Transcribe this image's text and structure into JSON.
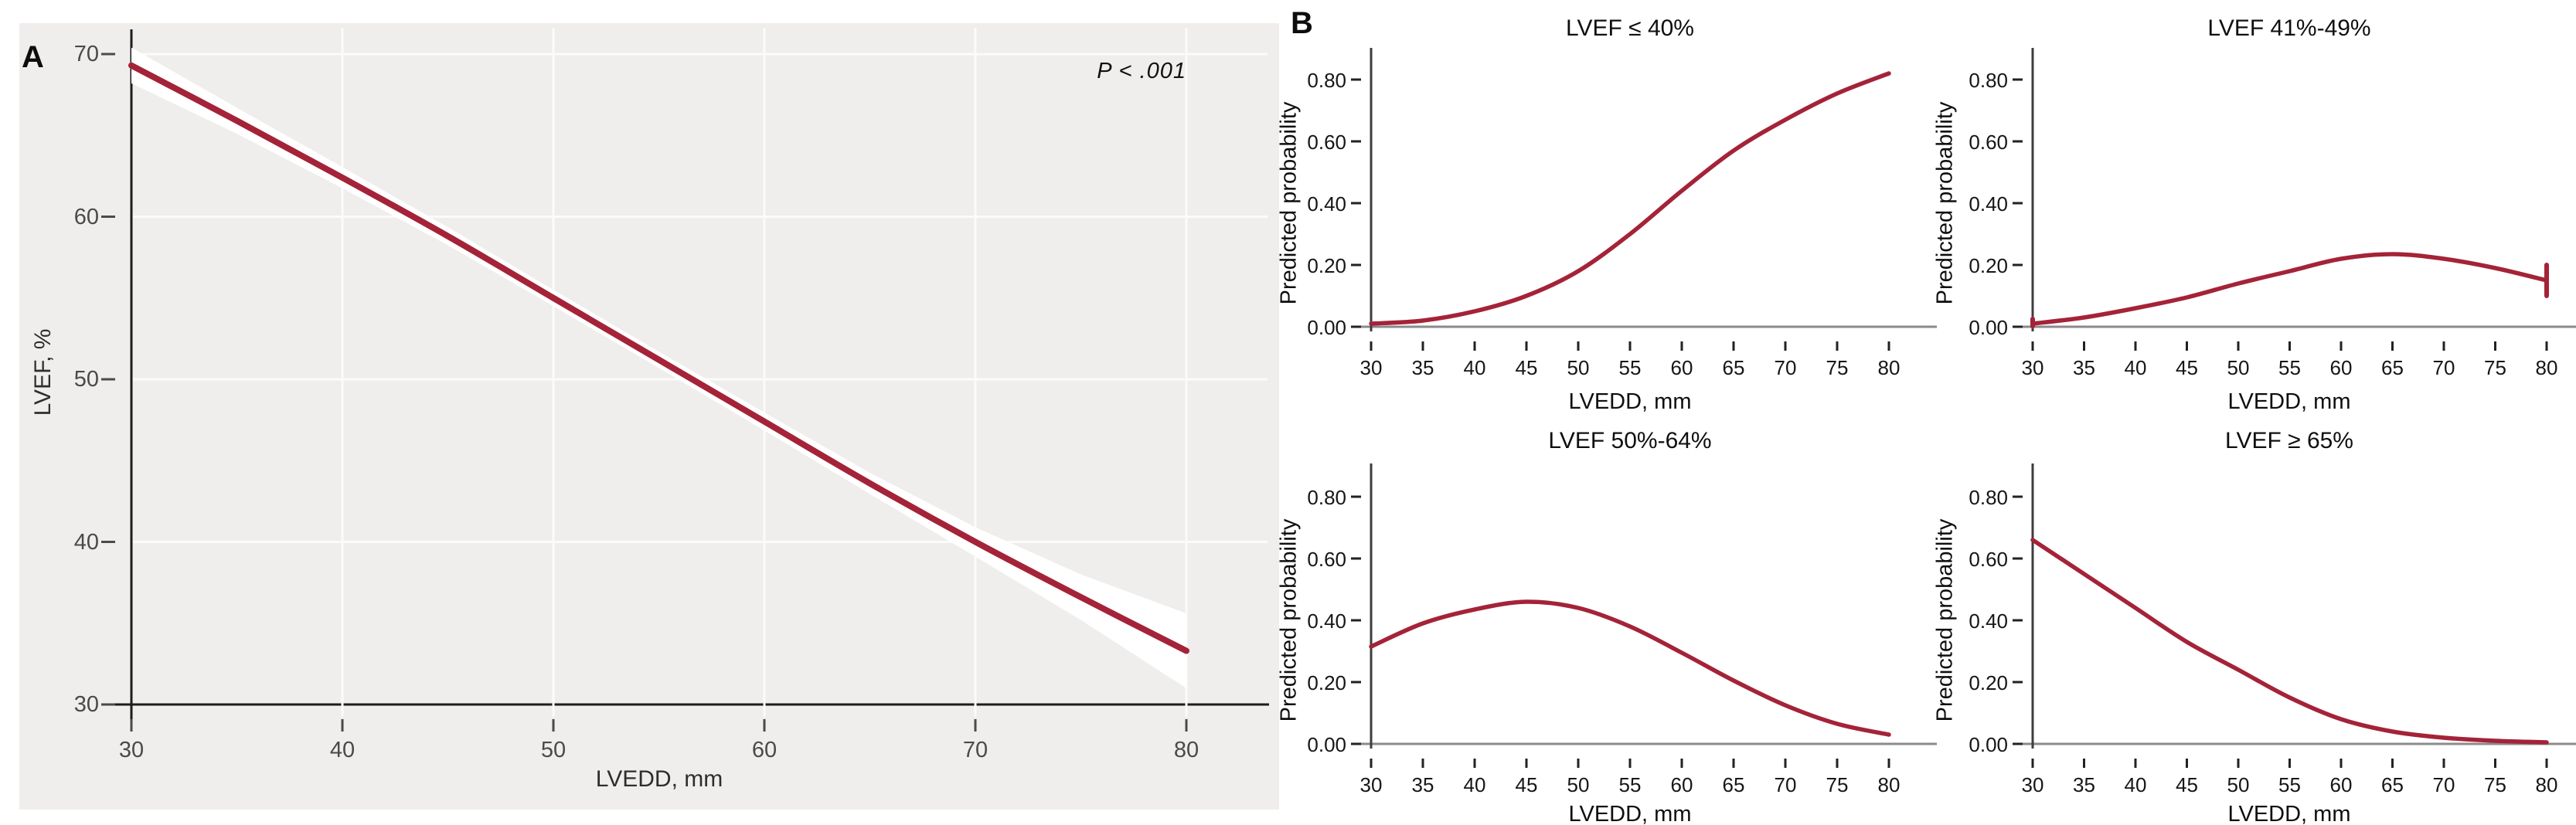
{
  "figure": {
    "panel_a_label": "A",
    "panel_b_label": "B"
  },
  "colors": {
    "curve": "#a42338",
    "panel_a_bg": "#efeeec",
    "gridline": "#fbfbfa",
    "axis_dark": "#1c1c1c",
    "axis_gray": "#8a8a8a",
    "b_axis_dark": "#3d3d3d",
    "tick_mark": "#4a4a4a",
    "ci_band": "#ffffff"
  },
  "chart_data": [
    {
      "panel": "A",
      "type": "line",
      "title": "",
      "xlabel": "LVEDD, mm",
      "ylabel": "LVEF, %",
      "annotation": "P < .001",
      "x": [
        30,
        35,
        40,
        45,
        50,
        55,
        60,
        65,
        70,
        75,
        80
      ],
      "y": [
        69.3,
        65.9,
        62.4,
        58.8,
        55.0,
        51.2,
        47.4,
        43.6,
        40.0,
        36.6,
        33.3
      ],
      "ci_half_width": [
        1.1,
        0.8,
        0.65,
        0.55,
        0.5,
        0.5,
        0.55,
        0.65,
        0.9,
        1.4,
        2.3
      ],
      "xlim": [
        30,
        80
      ],
      "ylim": [
        30,
        70
      ],
      "xticks": {
        "values": [
          30,
          40,
          50,
          60,
          70,
          80
        ],
        "labels": [
          "30",
          "40",
          "50",
          "60",
          "70",
          "80"
        ]
      },
      "yticks": {
        "values": [
          30,
          40,
          50,
          60,
          70
        ],
        "labels": [
          "30",
          "40",
          "50",
          "60",
          "70"
        ]
      },
      "grid": true,
      "legend": "none"
    },
    {
      "panel": "B",
      "type": "line",
      "title": "LVEF ≤ 40%",
      "xlabel": "LVEDD, mm",
      "ylabel": "Predicted probability",
      "x": [
        30,
        35,
        40,
        45,
        50,
        55,
        60,
        65,
        70,
        75,
        80
      ],
      "y": [
        0.01,
        0.02,
        0.05,
        0.1,
        0.18,
        0.3,
        0.44,
        0.57,
        0.67,
        0.755,
        0.82
      ],
      "xlim": [
        30,
        80
      ],
      "ylim": [
        0,
        0.9
      ],
      "xticks": {
        "values": [
          30,
          35,
          40,
          45,
          50,
          55,
          60,
          65,
          70,
          75,
          80
        ],
        "labels": [
          "30",
          "35",
          "40",
          "45",
          "50",
          "55",
          "60",
          "65",
          "70",
          "75",
          "80"
        ]
      },
      "yticks": {
        "values": [
          0.0,
          0.2,
          0.4,
          0.6,
          0.8
        ],
        "labels": [
          "0.00",
          "0.20",
          "0.40",
          "0.60",
          "0.80"
        ]
      },
      "grid": false,
      "legend": "none"
    },
    {
      "panel": "B",
      "type": "line",
      "title": "LVEF 41%-49%",
      "xlabel": "LVEDD, mm",
      "ylabel": "Predicted probability",
      "x": [
        30,
        35,
        40,
        45,
        50,
        55,
        60,
        65,
        70,
        75,
        80
      ],
      "y": [
        0.01,
        0.03,
        0.06,
        0.095,
        0.14,
        0.18,
        0.22,
        0.235,
        0.22,
        0.19,
        0.15
      ],
      "error_bars": [
        {
          "x": 30,
          "from": 0.002,
          "to": 0.025
        },
        {
          "x": 80,
          "from": 0.1,
          "to": 0.2
        }
      ],
      "xlim": [
        30,
        80
      ],
      "ylim": [
        0,
        0.9
      ],
      "xticks": {
        "values": [
          30,
          35,
          40,
          45,
          50,
          55,
          60,
          65,
          70,
          75,
          80
        ],
        "labels": [
          "30",
          "35",
          "40",
          "45",
          "50",
          "55",
          "60",
          "65",
          "70",
          "75",
          "80"
        ]
      },
      "yticks": {
        "values": [
          0.0,
          0.2,
          0.4,
          0.6,
          0.8
        ],
        "labels": [
          "0.00",
          "0.20",
          "0.40",
          "0.60",
          "0.80"
        ]
      },
      "grid": false,
      "legend": "none"
    },
    {
      "panel": "B",
      "type": "line",
      "title": "LVEF 50%-64%",
      "xlabel": "LVEDD, mm",
      "ylabel": "Predicted probability",
      "x": [
        30,
        35,
        40,
        45,
        50,
        55,
        60,
        65,
        70,
        75,
        80
      ],
      "y": [
        0.315,
        0.39,
        0.435,
        0.46,
        0.44,
        0.38,
        0.295,
        0.205,
        0.125,
        0.065,
        0.03
      ],
      "xlim": [
        30,
        80
      ],
      "ylim": [
        0,
        0.9
      ],
      "xticks": {
        "values": [
          30,
          35,
          40,
          45,
          50,
          55,
          60,
          65,
          70,
          75,
          80
        ],
        "labels": [
          "30",
          "35",
          "40",
          "45",
          "50",
          "55",
          "60",
          "65",
          "70",
          "75",
          "80"
        ]
      },
      "yticks": {
        "values": [
          0.0,
          0.2,
          0.4,
          0.6,
          0.8
        ],
        "labels": [
          "0.00",
          "0.20",
          "0.40",
          "0.60",
          "0.80"
        ]
      },
      "grid": false,
      "legend": "none"
    },
    {
      "panel": "B",
      "type": "line",
      "title": "LVEF ≥ 65%",
      "xlabel": "LVEDD, mm",
      "ylabel": "Predicted probability",
      "x": [
        30,
        35,
        40,
        45,
        50,
        55,
        60,
        65,
        70,
        75,
        80
      ],
      "y": [
        0.66,
        0.55,
        0.44,
        0.33,
        0.24,
        0.15,
        0.08,
        0.04,
        0.02,
        0.01,
        0.005
      ],
      "xlim": [
        30,
        80
      ],
      "ylim": [
        0,
        0.9
      ],
      "xticks": {
        "values": [
          30,
          35,
          40,
          45,
          50,
          55,
          60,
          65,
          70,
          75,
          80
        ],
        "labels": [
          "30",
          "35",
          "40",
          "45",
          "50",
          "55",
          "60",
          "65",
          "70",
          "75",
          "80"
        ]
      },
      "yticks": {
        "values": [
          0.0,
          0.2,
          0.4,
          0.6,
          0.8
        ],
        "labels": [
          "0.00",
          "0.20",
          "0.40",
          "0.60",
          "0.80"
        ]
      },
      "grid": false,
      "legend": "none"
    }
  ]
}
